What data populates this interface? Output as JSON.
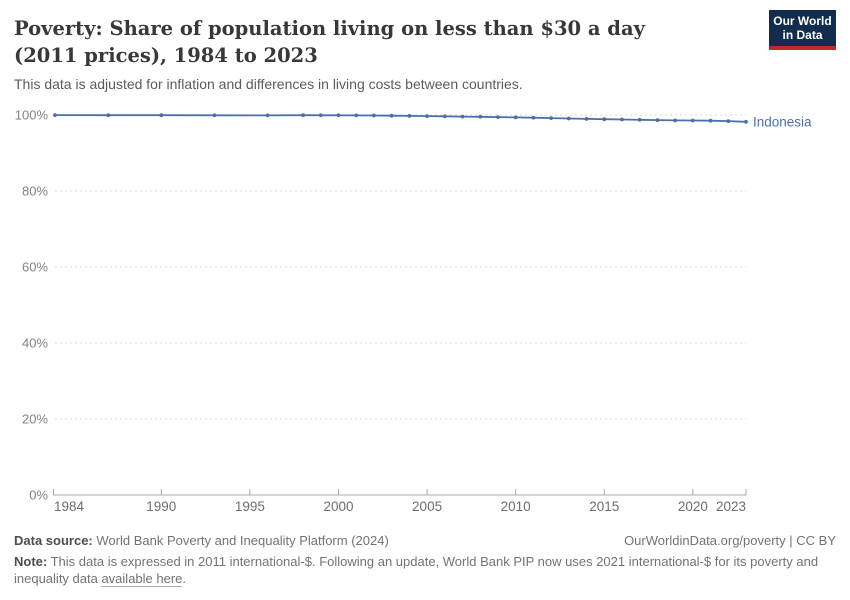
{
  "header": {
    "title": "Poverty: Share of population living on less than $30 a day (2011 prices), 1984 to 2023",
    "subtitle": "This data is adjusted for inflation and differences in living costs between countries.",
    "logo": {
      "line1": "Our World",
      "line2": "in Data",
      "bg_color": "#122c4e",
      "accent_color": "#c4282d"
    }
  },
  "chart_data": {
    "type": "line",
    "title": "Poverty: Share of population living on less than $30 a day (2011 prices), 1984 to 2023",
    "xlabel": "",
    "ylabel": "",
    "xlim": [
      1984,
      2023
    ],
    "ylim": [
      0,
      100
    ],
    "grid": "horizontal dashed",
    "legend_position": "end-of-line label",
    "x_ticks": [
      1984,
      1990,
      1995,
      2000,
      2005,
      2010,
      2015,
      2020,
      2023
    ],
    "y_ticks": [
      0,
      20,
      40,
      60,
      80,
      100
    ],
    "y_tick_suffix": "%",
    "series": [
      {
        "name": "Indonesia",
        "color": "#4c6ea9",
        "x": [
          1984,
          1987,
          1990,
          1993,
          1996,
          1998,
          1999,
          2000,
          2001,
          2002,
          2003,
          2004,
          2005,
          2006,
          2007,
          2008,
          2009,
          2010,
          2011,
          2012,
          2013,
          2014,
          2015,
          2016,
          2017,
          2018,
          2019,
          2020,
          2021,
          2022,
          2023
        ],
        "values": [
          99.97,
          99.96,
          99.95,
          99.93,
          99.89,
          99.94,
          99.93,
          99.91,
          99.89,
          99.86,
          99.82,
          99.77,
          99.72,
          99.66,
          99.59,
          99.52,
          99.45,
          99.37,
          99.28,
          99.18,
          99.08,
          98.98,
          98.9,
          98.82,
          98.74,
          98.66,
          98.58,
          98.55,
          98.5,
          98.4,
          98.2
        ]
      }
    ],
    "colors": {
      "gridline": "#d9d9d9",
      "axis": "#a8a8a8",
      "y_tick_label": "#828282",
      "x_tick_label": "#6d6d6d"
    }
  },
  "footer": {
    "datasource_label": "Data source:",
    "datasource_value": "World Bank Poverty and Inequality Platform (2024)",
    "credit": "OurWorldinData.org/poverty | CC BY",
    "note_label": "Note:",
    "note_before_link": "This data is expressed in 2011 international-$. Following an update, World Bank PIP now uses 2021 international-$ for its poverty and inequality data ",
    "note_link": "available here",
    "note_after_link": "."
  }
}
